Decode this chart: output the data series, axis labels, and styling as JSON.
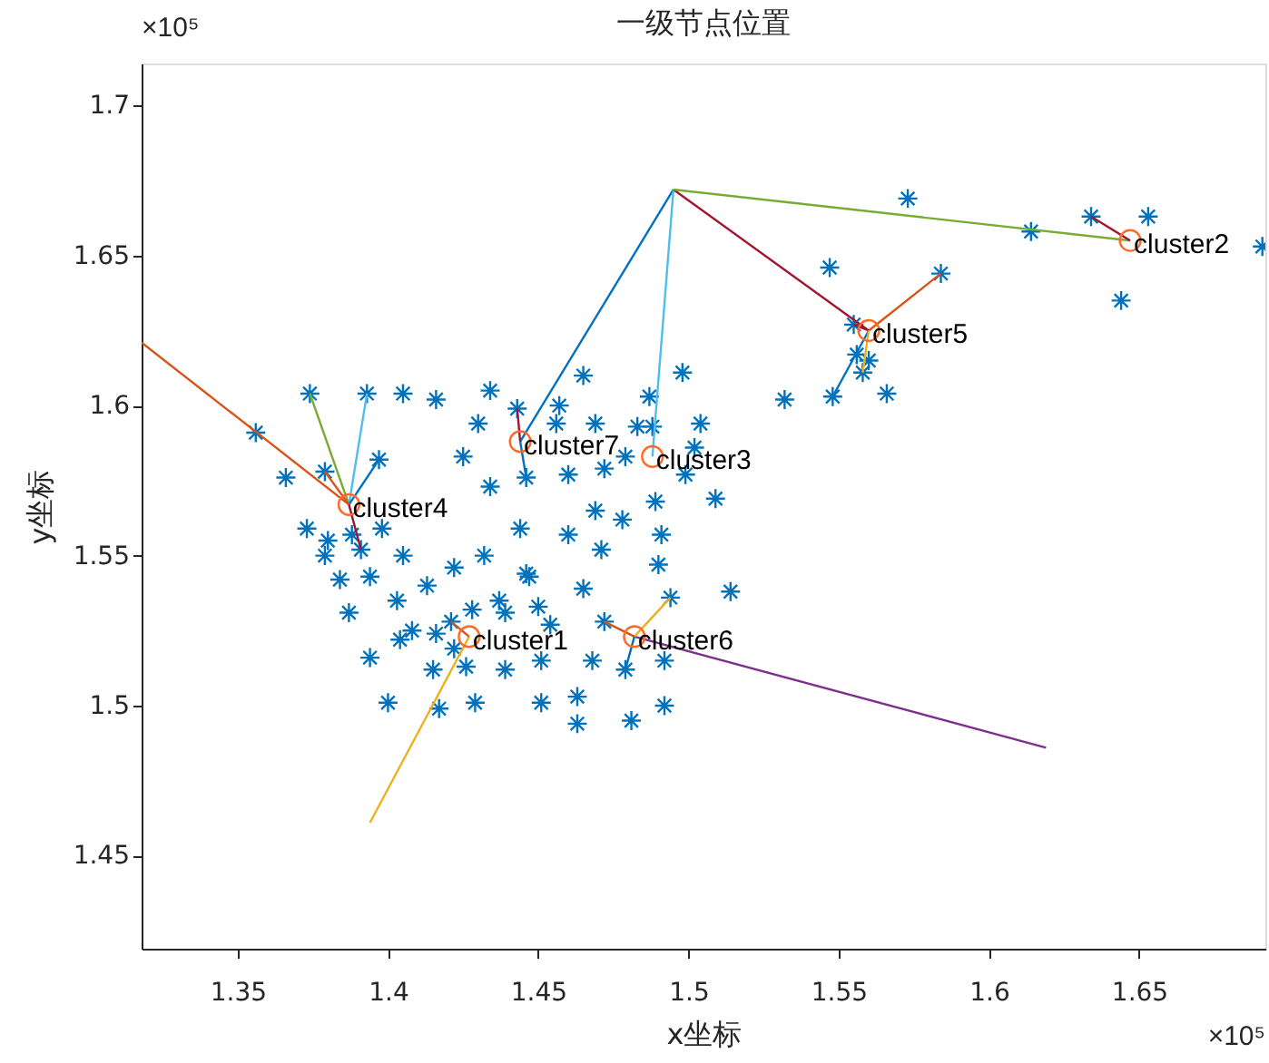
{
  "chart_data": {
    "type": "scatter",
    "title": "一级节点位置",
    "xlabel": "x坐标",
    "ylabel": "y坐标",
    "xlim": [
      1.318,
      1.692
    ],
    "ylim": [
      1.419,
      1.714
    ],
    "xticks": [
      1.35,
      1.4,
      1.45,
      1.5,
      1.55,
      1.6,
      1.65
    ],
    "yticks": [
      1.45,
      1.5,
      1.55,
      1.6,
      1.65,
      1.7
    ],
    "grid": false,
    "annotations": [
      "×10⁵",
      "×10⁵",
      {
        "text": "cluster1",
        "x": 1.427,
        "y": 1.523
      },
      {
        "text": "cluster2",
        "x": 1.647,
        "y": 1.655
      },
      {
        "text": "cluster3",
        "x": 1.488,
        "y": 1.583
      },
      {
        "text": "cluster4",
        "x": 1.387,
        "y": 1.567
      },
      {
        "text": "cluster5",
        "x": 1.56,
        "y": 1.625
      },
      {
        "text": "cluster6",
        "x": 1.482,
        "y": 1.523
      },
      {
        "text": "cluster7",
        "x": 1.444,
        "y": 1.588
      }
    ],
    "series": [
      {
        "marker": "cross",
        "color": "#0072bd",
        "x": [
          1.356,
          1.374,
          1.393,
          1.405,
          1.416,
          1.434,
          1.43,
          1.366,
          1.379,
          1.397,
          1.425,
          1.434,
          1.443,
          1.446,
          1.373,
          1.38,
          1.388,
          1.398,
          1.379,
          1.391,
          1.405,
          1.422,
          1.432,
          1.444,
          1.446,
          1.384,
          1.394,
          1.387,
          1.403,
          1.413,
          1.46,
          1.471,
          1.469,
          1.478,
          1.489,
          1.509,
          1.491,
          1.49,
          1.447,
          1.465,
          1.437,
          1.45,
          1.439,
          1.428,
          1.421,
          1.454,
          1.408,
          1.404,
          1.416,
          1.422,
          1.394,
          1.415,
          1.426,
          1.439,
          1.451,
          1.468,
          1.479,
          1.492,
          1.472,
          1.494,
          1.514,
          1.4,
          1.417,
          1.429,
          1.451,
          1.463,
          1.463,
          1.481,
          1.492,
          1.573,
          1.547,
          1.584,
          1.555,
          1.556,
          1.56,
          1.558,
          1.548,
          1.566,
          1.532,
          1.498,
          1.465,
          1.487,
          1.457,
          1.456,
          1.469,
          1.483,
          1.488,
          1.504,
          1.502,
          1.499,
          1.472,
          1.46,
          1.479,
          1.614,
          1.634,
          1.653,
          1.691,
          1.644
        ],
        "values": [
          1.591,
          1.604,
          1.604,
          1.604,
          1.602,
          1.605,
          1.594,
          1.576,
          1.578,
          1.582,
          1.583,
          1.573,
          1.599,
          1.576,
          1.559,
          1.555,
          1.557,
          1.559,
          1.55,
          1.552,
          1.55,
          1.546,
          1.55,
          1.559,
          1.544,
          1.542,
          1.543,
          1.531,
          1.535,
          1.54,
          1.557,
          1.552,
          1.565,
          1.562,
          1.568,
          1.569,
          1.557,
          1.547,
          1.543,
          1.539,
          1.535,
          1.533,
          1.531,
          1.532,
          1.528,
          1.527,
          1.525,
          1.522,
          1.524,
          1.519,
          1.516,
          1.512,
          1.513,
          1.512,
          1.515,
          1.515,
          1.512,
          1.515,
          1.528,
          1.536,
          1.538,
          1.501,
          1.499,
          1.501,
          1.501,
          1.503,
          1.494,
          1.495,
          1.5,
          1.669,
          1.646,
          1.644,
          1.627,
          1.617,
          1.615,
          1.611,
          1.603,
          1.604,
          1.602,
          1.611,
          1.61,
          1.603,
          1.6,
          1.594,
          1.594,
          1.593,
          1.593,
          1.594,
          1.586,
          1.577,
          1.579,
          1.577,
          1.583,
          1.658,
          1.663,
          1.663,
          1.653,
          1.635
        ]
      },
      {
        "type": "line",
        "marker": "none",
        "color": "#0072bd",
        "x": [
          1.495,
          1.444
        ],
        "values": [
          1.672,
          1.588
        ]
      },
      {
        "type": "line",
        "marker": "none",
        "color": "#4dbeee",
        "x": [
          1.495,
          1.488
        ],
        "values": [
          1.672,
          1.583
        ]
      },
      {
        "type": "line",
        "marker": "none",
        "color": "#a2142f",
        "x": [
          1.495,
          1.56
        ],
        "values": [
          1.672,
          1.625
        ]
      },
      {
        "type": "line",
        "marker": "none",
        "color": "#77ac30",
        "x": [
          1.495,
          1.647
        ],
        "values": [
          1.672,
          1.655
        ]
      },
      {
        "type": "line",
        "marker": "none",
        "color": "#d95319",
        "x": [
          1.387,
          1.318
        ],
        "values": [
          1.567,
          1.621
        ]
      },
      {
        "type": "line",
        "marker": "none",
        "color": "#edb120",
        "x": [
          1.427,
          1.394
        ],
        "values": [
          1.523,
          1.461
        ]
      },
      {
        "type": "line",
        "marker": "none",
        "color": "#7e2f8e",
        "x": [
          1.482,
          1.619
        ],
        "values": [
          1.523,
          1.486
        ]
      },
      {
        "type": "line",
        "marker": "none",
        "color": "#77ac30",
        "x": [
          1.387,
          1.374
        ],
        "values": [
          1.567,
          1.604
        ]
      },
      {
        "type": "line",
        "marker": "none",
        "color": "#4dbeee",
        "x": [
          1.387,
          1.393
        ],
        "values": [
          1.567,
          1.604
        ]
      },
      {
        "type": "line",
        "marker": "none",
        "color": "#0072bd",
        "x": [
          1.387,
          1.397
        ],
        "values": [
          1.567,
          1.582
        ]
      },
      {
        "type": "line",
        "marker": "none",
        "color": "#d95319",
        "x": [
          1.387,
          1.379
        ],
        "values": [
          1.567,
          1.578
        ]
      },
      {
        "type": "line",
        "marker": "none",
        "color": "#a2142f",
        "x": [
          1.387,
          1.391
        ],
        "values": [
          1.567,
          1.552
        ]
      },
      {
        "type": "line",
        "marker": "none",
        "color": "#d95319",
        "x": [
          1.56,
          1.584
        ],
        "values": [
          1.625,
          1.644
        ]
      },
      {
        "type": "line",
        "marker": "none",
        "color": "#a2142f",
        "x": [
          1.56,
          1.555
        ],
        "values": [
          1.625,
          1.627
        ]
      },
      {
        "type": "line",
        "marker": "none",
        "color": "#0072bd",
        "x": [
          1.56,
          1.548
        ],
        "values": [
          1.625,
          1.603
        ]
      },
      {
        "type": "line",
        "marker": "none",
        "color": "#edb120",
        "x": [
          1.56,
          1.558
        ],
        "values": [
          1.625,
          1.611
        ]
      },
      {
        "type": "line",
        "marker": "none",
        "color": "#a2142f",
        "x": [
          1.647,
          1.634
        ],
        "values": [
          1.655,
          1.663
        ]
      },
      {
        "type": "line",
        "marker": "none",
        "color": "#a2142f",
        "x": [
          1.444,
          1.443
        ],
        "values": [
          1.588,
          1.599
        ]
      },
      {
        "type": "line",
        "marker": "none",
        "color": "#0072bd",
        "x": [
          1.444,
          1.446
        ],
        "values": [
          1.588,
          1.576
        ]
      },
      {
        "type": "line",
        "marker": "none",
        "color": "#edb120",
        "x": [
          1.482,
          1.494
        ],
        "values": [
          1.523,
          1.536
        ]
      },
      {
        "type": "line",
        "marker": "none",
        "color": "#d95319",
        "x": [
          1.482,
          1.472
        ],
        "values": [
          1.523,
          1.528
        ]
      },
      {
        "type": "line",
        "marker": "none",
        "color": "#0072bd",
        "x": [
          1.482,
          1.479
        ],
        "values": [
          1.523,
          1.512
        ]
      },
      {
        "type": "line",
        "marker": "none",
        "color": "#d95319",
        "x": [
          1.427,
          1.421
        ],
        "values": [
          1.523,
          1.528
        ]
      },
      {
        "marker": "circle",
        "color": "#ff6929",
        "x": [
          1.427,
          1.647,
          1.488,
          1.387,
          1.56,
          1.482,
          1.444
        ],
        "values": [
          1.523,
          1.655,
          1.583,
          1.567,
          1.625,
          1.523,
          1.588
        ]
      }
    ]
  }
}
